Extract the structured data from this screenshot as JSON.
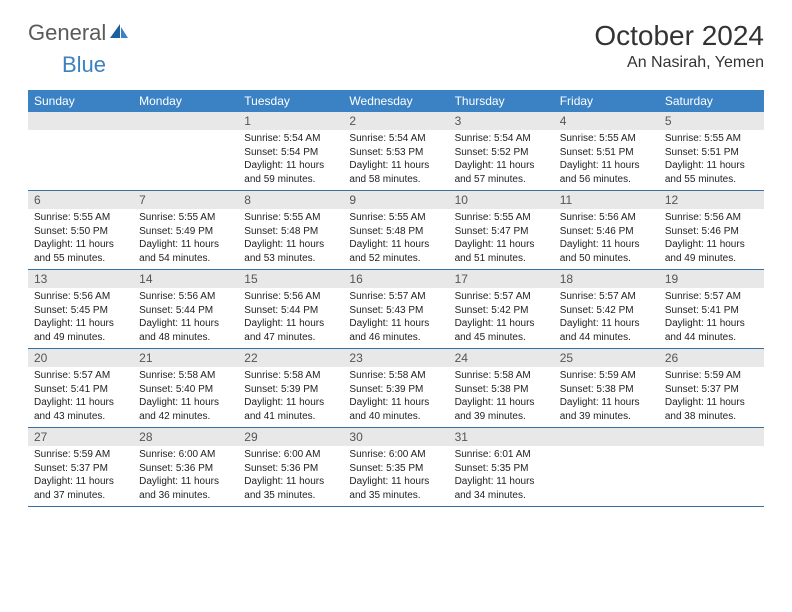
{
  "logo": {
    "text1": "General",
    "text2": "Blue"
  },
  "title": "October 2024",
  "location": "An Nasirah, Yemen",
  "colors": {
    "header_bg": "#3b82c4",
    "header_text": "#ffffff",
    "daynum_bg": "#e8e8e8",
    "rule": "#3b6ea0",
    "body_text": "#222222"
  },
  "dayNames": [
    "Sunday",
    "Monday",
    "Tuesday",
    "Wednesday",
    "Thursday",
    "Friday",
    "Saturday"
  ],
  "weeks": [
    [
      null,
      null,
      {
        "n": "1",
        "sr": "5:54 AM",
        "ss": "5:54 PM",
        "dl": "11 hours and 59 minutes."
      },
      {
        "n": "2",
        "sr": "5:54 AM",
        "ss": "5:53 PM",
        "dl": "11 hours and 58 minutes."
      },
      {
        "n": "3",
        "sr": "5:54 AM",
        "ss": "5:52 PM",
        "dl": "11 hours and 57 minutes."
      },
      {
        "n": "4",
        "sr": "5:55 AM",
        "ss": "5:51 PM",
        "dl": "11 hours and 56 minutes."
      },
      {
        "n": "5",
        "sr": "5:55 AM",
        "ss": "5:51 PM",
        "dl": "11 hours and 55 minutes."
      }
    ],
    [
      {
        "n": "6",
        "sr": "5:55 AM",
        "ss": "5:50 PM",
        "dl": "11 hours and 55 minutes."
      },
      {
        "n": "7",
        "sr": "5:55 AM",
        "ss": "5:49 PM",
        "dl": "11 hours and 54 minutes."
      },
      {
        "n": "8",
        "sr": "5:55 AM",
        "ss": "5:48 PM",
        "dl": "11 hours and 53 minutes."
      },
      {
        "n": "9",
        "sr": "5:55 AM",
        "ss": "5:48 PM",
        "dl": "11 hours and 52 minutes."
      },
      {
        "n": "10",
        "sr": "5:55 AM",
        "ss": "5:47 PM",
        "dl": "11 hours and 51 minutes."
      },
      {
        "n": "11",
        "sr": "5:56 AM",
        "ss": "5:46 PM",
        "dl": "11 hours and 50 minutes."
      },
      {
        "n": "12",
        "sr": "5:56 AM",
        "ss": "5:46 PM",
        "dl": "11 hours and 49 minutes."
      }
    ],
    [
      {
        "n": "13",
        "sr": "5:56 AM",
        "ss": "5:45 PM",
        "dl": "11 hours and 49 minutes."
      },
      {
        "n": "14",
        "sr": "5:56 AM",
        "ss": "5:44 PM",
        "dl": "11 hours and 48 minutes."
      },
      {
        "n": "15",
        "sr": "5:56 AM",
        "ss": "5:44 PM",
        "dl": "11 hours and 47 minutes."
      },
      {
        "n": "16",
        "sr": "5:57 AM",
        "ss": "5:43 PM",
        "dl": "11 hours and 46 minutes."
      },
      {
        "n": "17",
        "sr": "5:57 AM",
        "ss": "5:42 PM",
        "dl": "11 hours and 45 minutes."
      },
      {
        "n": "18",
        "sr": "5:57 AM",
        "ss": "5:42 PM",
        "dl": "11 hours and 44 minutes."
      },
      {
        "n": "19",
        "sr": "5:57 AM",
        "ss": "5:41 PM",
        "dl": "11 hours and 44 minutes."
      }
    ],
    [
      {
        "n": "20",
        "sr": "5:57 AM",
        "ss": "5:41 PM",
        "dl": "11 hours and 43 minutes."
      },
      {
        "n": "21",
        "sr": "5:58 AM",
        "ss": "5:40 PM",
        "dl": "11 hours and 42 minutes."
      },
      {
        "n": "22",
        "sr": "5:58 AM",
        "ss": "5:39 PM",
        "dl": "11 hours and 41 minutes."
      },
      {
        "n": "23",
        "sr": "5:58 AM",
        "ss": "5:39 PM",
        "dl": "11 hours and 40 minutes."
      },
      {
        "n": "24",
        "sr": "5:58 AM",
        "ss": "5:38 PM",
        "dl": "11 hours and 39 minutes."
      },
      {
        "n": "25",
        "sr": "5:59 AM",
        "ss": "5:38 PM",
        "dl": "11 hours and 39 minutes."
      },
      {
        "n": "26",
        "sr": "5:59 AM",
        "ss": "5:37 PM",
        "dl": "11 hours and 38 minutes."
      }
    ],
    [
      {
        "n": "27",
        "sr": "5:59 AM",
        "ss": "5:37 PM",
        "dl": "11 hours and 37 minutes."
      },
      {
        "n": "28",
        "sr": "6:00 AM",
        "ss": "5:36 PM",
        "dl": "11 hours and 36 minutes."
      },
      {
        "n": "29",
        "sr": "6:00 AM",
        "ss": "5:36 PM",
        "dl": "11 hours and 35 minutes."
      },
      {
        "n": "30",
        "sr": "6:00 AM",
        "ss": "5:35 PM",
        "dl": "11 hours and 35 minutes."
      },
      {
        "n": "31",
        "sr": "6:01 AM",
        "ss": "5:35 PM",
        "dl": "11 hours and 34 minutes."
      },
      null,
      null
    ]
  ],
  "labels": {
    "sunrise": "Sunrise:",
    "sunset": "Sunset:",
    "daylight": "Daylight:"
  }
}
